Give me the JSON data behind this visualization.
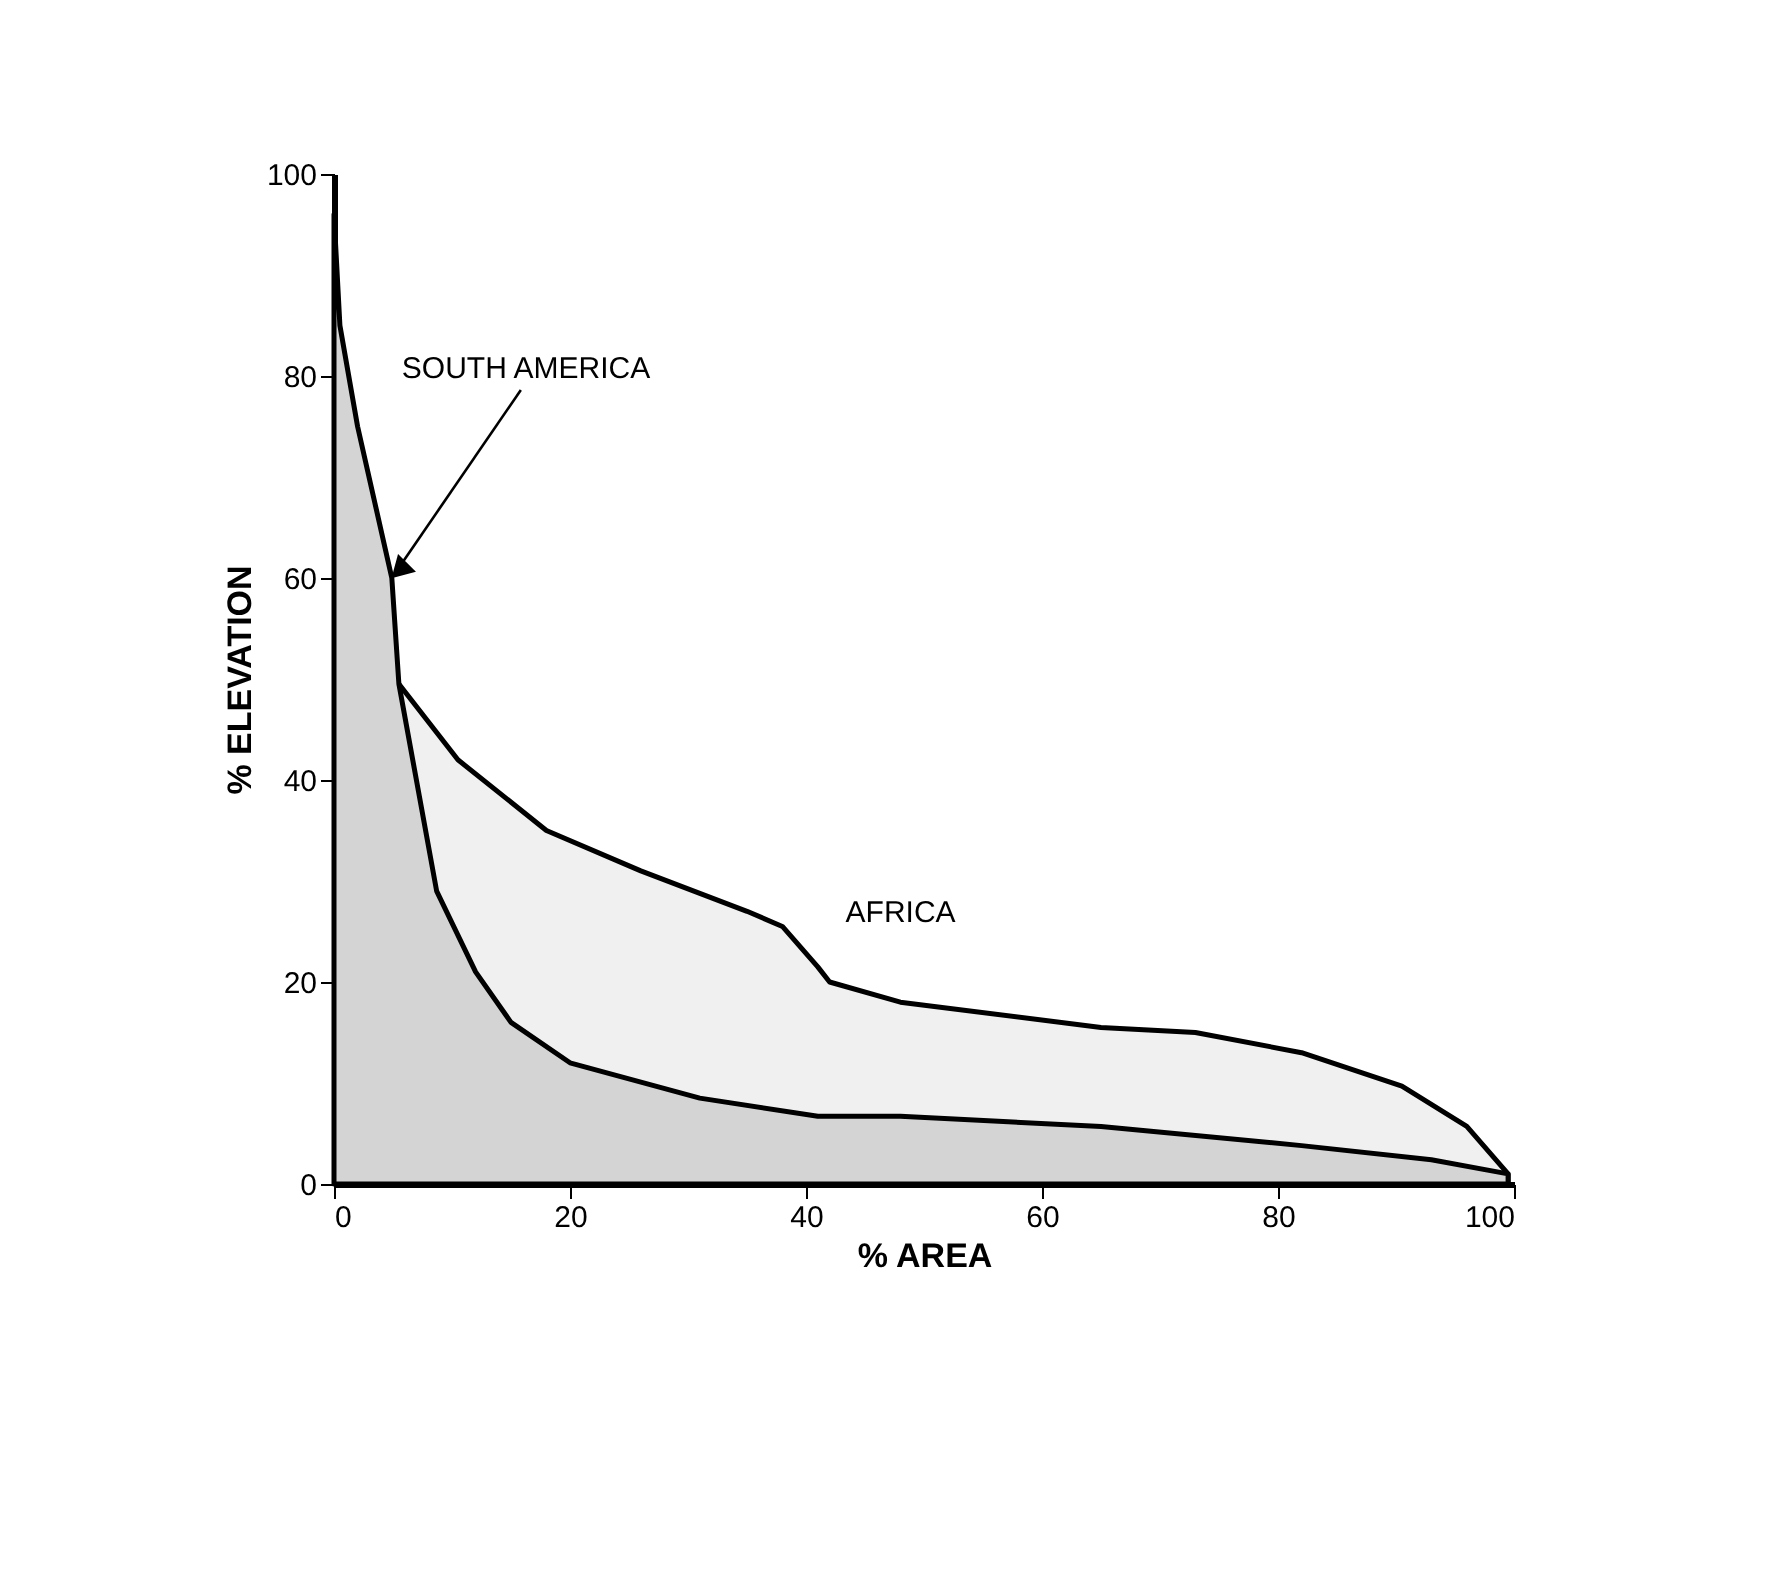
{
  "chart_data": {
    "type": "area",
    "xlabel": "% AREA",
    "ylabel": "% ELEVATION",
    "xlim": [
      0,
      100
    ],
    "ylim": [
      0,
      100
    ],
    "xticks": [
      0,
      20,
      40,
      60,
      80,
      100
    ],
    "yticks": [
      0,
      20,
      40,
      60,
      80,
      100
    ],
    "grid": false,
    "series": [
      {
        "name": "AFRICA",
        "color": "#f0f0f0",
        "x": [
          5.5,
          10.5,
          18,
          26,
          35,
          38,
          41,
          42,
          48,
          65,
          73,
          82,
          90.5,
          96,
          99.5
        ],
        "values": [
          49.5,
          42,
          35,
          31,
          27,
          25.5,
          21.5,
          20,
          18,
          15.5,
          15,
          13,
          9.7,
          5.7,
          1
        ]
      },
      {
        "name": "SOUTH AMERICA",
        "color": "#d4d4d4",
        "x": [
          0,
          0.5,
          2,
          4.9,
          5.5,
          8.7,
          12,
          15,
          20,
          31,
          41,
          48,
          65,
          82,
          93,
          99.5
        ],
        "values": [
          96,
          85,
          75,
          60,
          49.5,
          29,
          21,
          16,
          12,
          8.5,
          6.7,
          6.7,
          5.7,
          3.8,
          2.4,
          1
        ]
      }
    ]
  }
}
